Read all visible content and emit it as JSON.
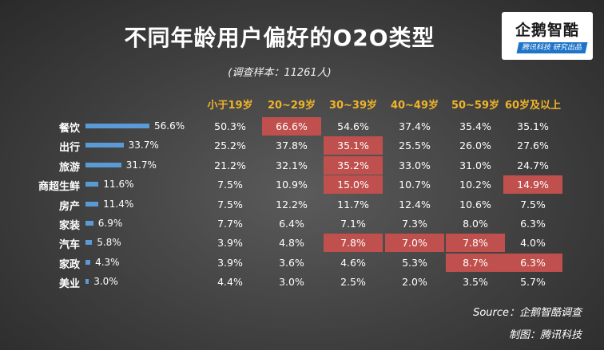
{
  "title": "不同年龄用户偏好的O2O类型",
  "subtitle": "(调查样本：11261人)",
  "logo": {
    "main": "企鹅智酷",
    "sub": "腾讯科技 研究出品"
  },
  "source": "Source：企鹅智酷调查",
  "credit": "制图：腾讯科技",
  "colors": {
    "bar": "#5b9bd5",
    "highlight": "#c0504d",
    "header": "#f0b429"
  },
  "chart_data": {
    "type": "table",
    "title": "不同年龄用户偏好的O2O类型",
    "columns": [
      "小于19岁",
      "20~29岁",
      "30~39岁",
      "40~49岁",
      "50~59岁",
      "60岁及以上"
    ],
    "rows": [
      {
        "label": "餐饮",
        "overall": 56.6,
        "overall_text": "56.6%",
        "cells": [
          "50.3%",
          "66.6%",
          "54.6%",
          "37.4%",
          "35.4%",
          "35.1%"
        ],
        "highlight": [
          false,
          true,
          false,
          false,
          false,
          false
        ]
      },
      {
        "label": "出行",
        "overall": 33.7,
        "overall_text": "33.7%",
        "cells": [
          "25.2%",
          "37.8%",
          "35.1%",
          "25.5%",
          "26.0%",
          "27.6%"
        ],
        "highlight": [
          false,
          false,
          true,
          false,
          false,
          false
        ]
      },
      {
        "label": "旅游",
        "overall": 31.7,
        "overall_text": "31.7%",
        "cells": [
          "21.2%",
          "32.1%",
          "35.2%",
          "33.0%",
          "31.0%",
          "24.7%"
        ],
        "highlight": [
          false,
          false,
          true,
          false,
          false,
          false
        ]
      },
      {
        "label": "商超生鲜",
        "overall": 11.6,
        "overall_text": "11.6%",
        "cells": [
          "7.5%",
          "10.9%",
          "15.0%",
          "10.7%",
          "10.2%",
          "14.9%"
        ],
        "highlight": [
          false,
          false,
          true,
          false,
          false,
          true
        ]
      },
      {
        "label": "房产",
        "overall": 11.4,
        "overall_text": "11.4%",
        "cells": [
          "7.5%",
          "12.2%",
          "11.7%",
          "12.4%",
          "10.6%",
          "7.5%"
        ],
        "highlight": [
          false,
          false,
          false,
          false,
          false,
          false
        ]
      },
      {
        "label": "家装",
        "overall": 6.9,
        "overall_text": "6.9%",
        "cells": [
          "7.7%",
          "6.4%",
          "7.1%",
          "7.3%",
          "8.0%",
          "6.3%"
        ],
        "highlight": [
          false,
          false,
          false,
          false,
          false,
          false
        ]
      },
      {
        "label": "汽车",
        "overall": 5.8,
        "overall_text": "5.8%",
        "cells": [
          "3.9%",
          "4.8%",
          "7.8%",
          "7.0%",
          "7.8%",
          "4.0%"
        ],
        "highlight": [
          false,
          false,
          true,
          true,
          true,
          false
        ]
      },
      {
        "label": "家政",
        "overall": 4.3,
        "overall_text": "4.3%",
        "cells": [
          "3.9%",
          "3.6%",
          "4.6%",
          "5.3%",
          "8.7%",
          "6.3%"
        ],
        "highlight": [
          false,
          false,
          false,
          false,
          true,
          true
        ]
      },
      {
        "label": "美业",
        "overall": 3.0,
        "overall_text": "3.0%",
        "cells": [
          "4.4%",
          "3.0%",
          "2.5%",
          "2.0%",
          "3.5%",
          "5.7%"
        ],
        "highlight": [
          false,
          false,
          false,
          false,
          false,
          false
        ]
      }
    ]
  }
}
